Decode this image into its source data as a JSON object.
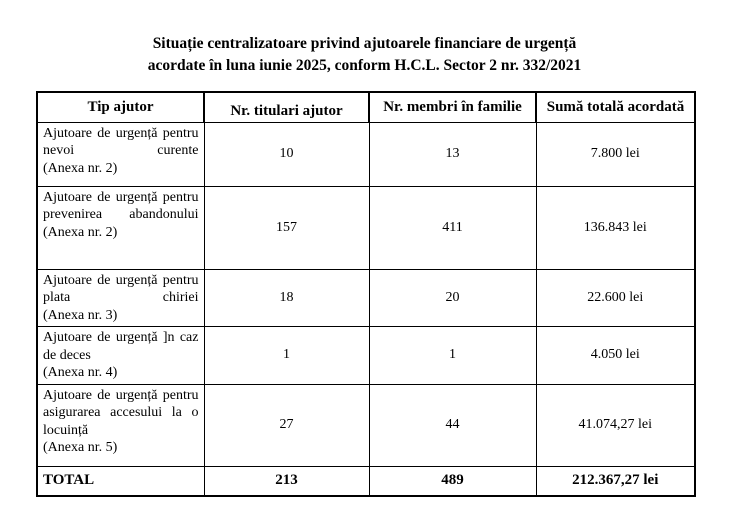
{
  "page": {
    "background_color": "#ffffff",
    "text_color": "#000000",
    "border_color": "#000000"
  },
  "title": {
    "line1": "Situație centralizatoare privind ajutoarele financiare de urgență",
    "line2": "acordate în luna iunie 2025, conform H.C.L. Sector 2 nr. 332/2021"
  },
  "table": {
    "headers": [
      "Tip ajutor",
      "Nr. titulari ajutor",
      "Nr. membri în familie",
      "Sumă totală acordată"
    ],
    "rows": [
      {
        "tip": "Ajutoare de urgență pentru nevoi curente",
        "anexa": "(Anexa nr. 2)",
        "titulari": "10",
        "membri": "13",
        "suma": "7.800 lei"
      },
      {
        "tip": "Ajutoare de urgență pentru prevenirea abandonului",
        "anexa": "(Anexa nr. 2)",
        "titulari": "157",
        "membri": "411",
        "suma": "136.843 lei"
      },
      {
        "tip": "Ajutoare de urgență pentru plata chiriei",
        "anexa": "(Anexa nr. 3)",
        "titulari": "18",
        "membri": "20",
        "suma": "22.600 lei"
      },
      {
        "tip": "Ajutoare de urgență ]n caz de deces",
        "anexa": "(Anexa nr. 4)",
        "titulari": "1",
        "membri": "1",
        "suma": "4.050 lei"
      },
      {
        "tip": "Ajutoare de urgență pentru asigurarea accesului la o locuință",
        "anexa": "(Anexa nr. 5)",
        "titulari": "27",
        "membri": "44",
        "suma": "41.074,27 lei"
      }
    ],
    "total": {
      "label": "TOTAL",
      "titulari": "213",
      "membri": "489",
      "suma": "212.367,27 lei"
    }
  }
}
